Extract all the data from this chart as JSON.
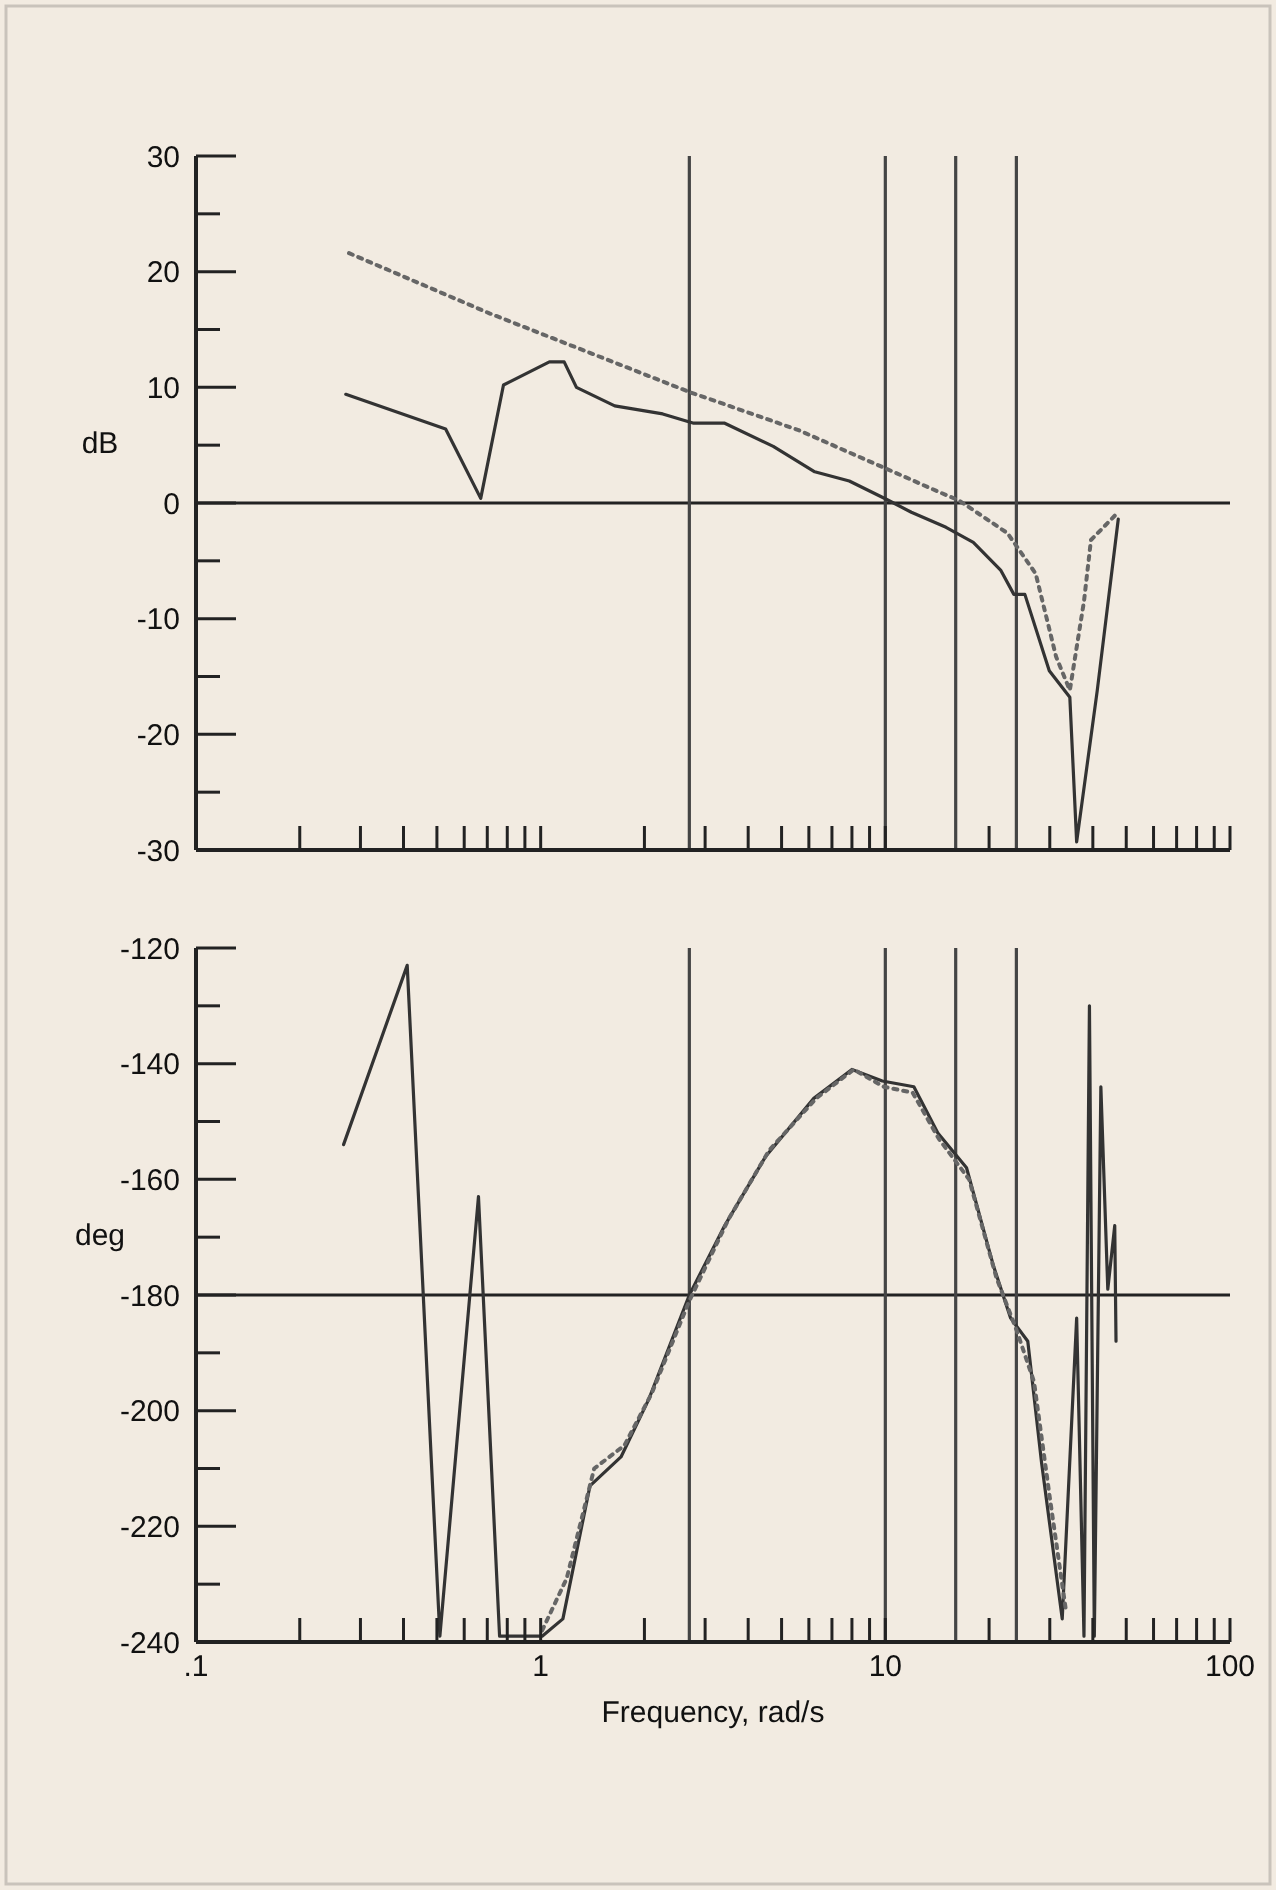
{
  "chart_data": [
    {
      "type": "line",
      "ylabel": "dB",
      "log": "x",
      "xlim": [
        0.1,
        100
      ],
      "ylim": [
        -30,
        30
      ],
      "tick_labels": "y",
      "xticks": [
        {
          "value": 0.1,
          "label": null
        },
        {
          "value": 0.2,
          "label": null
        },
        {
          "value": 0.3,
          "label": null
        },
        {
          "value": 0.4,
          "label": null
        },
        {
          "value": 0.5,
          "label": null
        },
        {
          "value": 0.6,
          "label": null
        },
        {
          "value": 0.7,
          "label": null
        },
        {
          "value": 0.8,
          "label": null
        },
        {
          "value": 0.9,
          "label": null
        },
        {
          "value": 1,
          "label": null
        },
        {
          "value": 2,
          "label": null
        },
        {
          "value": 3,
          "label": null
        },
        {
          "value": 4,
          "label": null
        },
        {
          "value": 5,
          "label": null
        },
        {
          "value": 6,
          "label": null
        },
        {
          "value": 7,
          "label": null
        },
        {
          "value": 8,
          "label": null
        },
        {
          "value": 9,
          "label": null
        },
        {
          "value": 10,
          "label": null
        },
        {
          "value": 20,
          "label": null
        },
        {
          "value": 30,
          "label": null
        },
        {
          "value": 40,
          "label": null
        },
        {
          "value": 50,
          "label": null
        },
        {
          "value": 60,
          "label": null
        },
        {
          "value": 70,
          "label": null
        },
        {
          "value": 80,
          "label": null
        },
        {
          "value": 90,
          "label": null
        },
        {
          "value": 100,
          "label": null
        }
      ],
      "yticks": [
        -30,
        {
          "value": -25,
          "label": null
        },
        -20,
        {
          "value": -15,
          "label": null
        },
        -10,
        {
          "value": -5,
          "label": null
        },
        0,
        {
          "value": 5,
          "label": null
        },
        10,
        {
          "value": 15,
          "label": null
        },
        20,
        {
          "value": 25,
          "label": null
        },
        30
      ],
      "ref_lines": [
        {
          "axis": "y",
          "value": 0,
          "color": "#222222"
        },
        {
          "axis": "x",
          "value": 2.7,
          "color": "#444444"
        },
        {
          "axis": "x",
          "value": 10,
          "color": "#444444"
        },
        {
          "axis": "x",
          "value": 16,
          "color": "#444444"
        },
        {
          "axis": "x",
          "value": 24,
          "color": "#444444"
        }
      ],
      "series": [
        {
          "color": "#333333",
          "line_style": "solid",
          "x": [
            0.272,
            0.53,
            0.67,
            0.78,
            1.06,
            1.17,
            1.27,
            1.64,
            2.26,
            2.78,
            3.42,
            4.73,
            6.24,
            7.86,
            10.1,
            11.9,
            15,
            18,
            21.6,
            23.6,
            25.4,
            29.9,
            34.3,
            35.9,
            41.2,
            47.4
          ],
          "values": [
            9.4,
            6.4,
            0.4,
            10.2,
            12.2,
            12.2,
            10,
            8.4,
            7.7,
            6.9,
            6.9,
            4.9,
            2.7,
            1.9,
            0.3,
            -0.8,
            -2.1,
            -3.4,
            -5.8,
            -7.9,
            -7.9,
            -14.5,
            -16.8,
            -29.3,
            -16.2,
            -1.4
          ]
        },
        {
          "color": "#666666",
          "line_style": "dotted",
          "x": [
            0.278,
            0.71,
            2.7,
            5.6,
            14.2,
            16.4,
            22.6,
            27.3,
            31.3,
            34.3,
            37.7,
            39.5,
            46.3
          ],
          "values": [
            21.6,
            16.4,
            9.6,
            6.3,
            1,
            0.2,
            -2.6,
            -6.1,
            -13.3,
            -16.2,
            -8.5,
            -3.2,
            -1.1
          ]
        }
      ]
    },
    {
      "type": "line",
      "ylabel": "deg",
      "xlabel": "Frequency, rad/s",
      "log": "x",
      "xlim": [
        0.1,
        100
      ],
      "ylim": [
        -240,
        -120
      ],
      "xticks": [
        {
          "value": 0.1,
          "label": ".1"
        },
        {
          "value": 0.2,
          "label": null
        },
        {
          "value": 0.3,
          "label": null
        },
        {
          "value": 0.4,
          "label": null
        },
        {
          "value": 0.5,
          "label": null
        },
        {
          "value": 0.6,
          "label": null
        },
        {
          "value": 0.7,
          "label": null
        },
        {
          "value": 0.8,
          "label": null
        },
        {
          "value": 0.9,
          "label": null
        },
        1,
        {
          "value": 2,
          "label": null
        },
        {
          "value": 3,
          "label": null
        },
        {
          "value": 4,
          "label": null
        },
        {
          "value": 5,
          "label": null
        },
        {
          "value": 6,
          "label": null
        },
        {
          "value": 7,
          "label": null
        },
        {
          "value": 8,
          "label": null
        },
        {
          "value": 9,
          "label": null
        },
        10,
        {
          "value": 20,
          "label": null
        },
        {
          "value": 30,
          "label": null
        },
        {
          "value": 40,
          "label": null
        },
        {
          "value": 50,
          "label": null
        },
        {
          "value": 60,
          "label": null
        },
        {
          "value": 70,
          "label": null
        },
        {
          "value": 80,
          "label": null
        },
        {
          "value": 90,
          "label": null
        },
        100
      ],
      "yticks": [
        -240,
        {
          "value": -230,
          "label": null
        },
        -220,
        {
          "value": -210,
          "label": null
        },
        -200,
        {
          "value": -190,
          "label": null
        },
        -180,
        {
          "value": -170,
          "label": null
        },
        -160,
        {
          "value": -150,
          "label": null
        },
        -140,
        {
          "value": -130,
          "label": null
        },
        -120
      ],
      "ref_lines": [
        {
          "axis": "y",
          "value": -180,
          "color": "#222222"
        },
        {
          "axis": "x",
          "value": 2.7,
          "color": "#444444"
        },
        {
          "axis": "x",
          "value": 10,
          "color": "#444444"
        },
        {
          "axis": "x",
          "value": 16,
          "color": "#444444"
        },
        {
          "axis": "x",
          "value": 24,
          "color": "#444444"
        }
      ],
      "series": [
        {
          "color": "#333333",
          "line_style": "solid",
          "x": [
            0.268,
            0.41,
            0.51,
            0.66,
            0.76,
            1.01,
            1.16,
            1.39,
            1.71,
            2.06,
            2.7,
            3.42,
            4.5,
            6.2,
            8,
            9.8,
            12.1,
            14.2,
            17.2,
            20.6,
            23.1,
            25.9,
            28.4,
            32.6,
            35.9,
            37.7,
            39.1,
            40.4,
            42.2,
            44.2,
            46.3,
            46.7
          ],
          "values": [
            -154,
            -123,
            -239,
            -163,
            -239,
            -239,
            -236,
            -213,
            -208,
            -198,
            -180,
            -168,
            -156,
            -146,
            -141,
            -143,
            -144,
            -152,
            -158,
            -175,
            -184,
            -188,
            -209,
            -236,
            -184,
            -239,
            -130,
            -239,
            -144,
            -179,
            -168,
            -188
          ]
        },
        {
          "color": "#666666",
          "line_style": "dotted",
          "x": [
            1.01,
            1.19,
            1.43,
            1.75,
            2.1,
            2.7,
            3.5,
            4.6,
            6.3,
            8.1,
            9.9,
            12,
            14.3,
            17.5,
            21,
            24,
            27,
            30,
            33.5
          ],
          "values": [
            -238,
            -229,
            -210,
            -206,
            -197,
            -181,
            -167,
            -155,
            -146,
            -141,
            -144,
            -145,
            -153,
            -160,
            -177,
            -186,
            -195,
            -215,
            -235
          ]
        }
      ]
    }
  ]
}
